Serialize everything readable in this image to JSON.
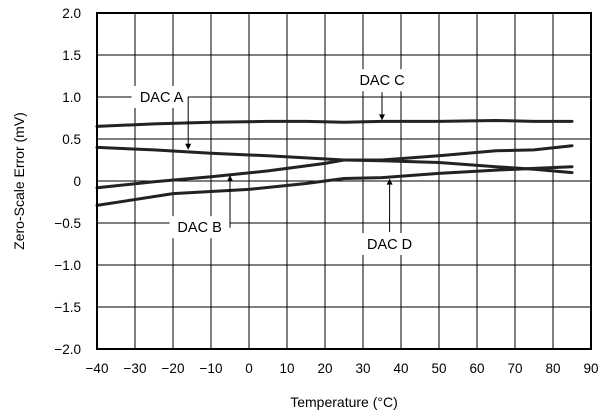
{
  "chart_data": {
    "type": "line",
    "title": "",
    "xlabel": "Temperature (°C)",
    "ylabel": "Zero-Scale Error (mV)",
    "xlim": [
      -40,
      90
    ],
    "ylim": [
      -2.0,
      2.0
    ],
    "xticks": [
      -40,
      -30,
      -20,
      -10,
      0,
      10,
      20,
      30,
      40,
      50,
      60,
      70,
      80,
      90
    ],
    "xtick_labels": [
      "−40",
      "−30",
      "−20",
      "−10",
      "0",
      "10",
      "20",
      "30",
      "40",
      "50",
      "60",
      "70",
      "80",
      "90"
    ],
    "yticks": [
      2.0,
      1.5,
      1.0,
      0.5,
      0,
      -0.5,
      -1.0,
      -1.5,
      -2.0
    ],
    "ytick_labels": [
      "2.0",
      "1.5",
      "1.0",
      "0.5",
      "0",
      "−0.5",
      "−1.0",
      "−1.5",
      "−2.0"
    ],
    "grid": true,
    "legend": "none",
    "series": [
      {
        "name": "DAC A",
        "x": [
          -40,
          -25,
          -10,
          5,
          25,
          35,
          50,
          65,
          75,
          85
        ],
        "y": [
          0.4,
          0.37,
          0.33,
          0.3,
          0.25,
          0.24,
          0.22,
          0.17,
          0.14,
          0.1
        ]
      },
      {
        "name": "DAC B",
        "x": [
          -40,
          -25,
          -10,
          5,
          20,
          25,
          35,
          50,
          65,
          75,
          85
        ],
        "y": [
          -0.08,
          -0.01,
          0.05,
          0.12,
          0.21,
          0.25,
          0.25,
          0.3,
          0.36,
          0.37,
          0.42
        ]
      },
      {
        "name": "DAC C",
        "x": [
          -40,
          -25,
          -10,
          5,
          15,
          25,
          35,
          50,
          65,
          75,
          85
        ],
        "y": [
          0.65,
          0.68,
          0.7,
          0.71,
          0.71,
          0.7,
          0.71,
          0.71,
          0.72,
          0.71,
          0.71
        ]
      },
      {
        "name": "DAC D",
        "x": [
          -40,
          -20,
          0,
          15,
          25,
          35,
          50,
          65,
          75,
          85
        ],
        "y": [
          -0.29,
          -0.15,
          -0.1,
          -0.03,
          0.03,
          0.04,
          0.09,
          0.13,
          0.15,
          0.17
        ]
      }
    ],
    "annotations": [
      {
        "text": "DAC A",
        "series": "DAC A",
        "target_x": -16,
        "target_y": 0.36,
        "label_x": -23,
        "label_y": 1.0
      },
      {
        "text": "DAC B",
        "series": "DAC B",
        "target_x": -5,
        "target_y": 0.08,
        "label_x": -13,
        "label_y": -0.55
      },
      {
        "text": "DAC C",
        "series": "DAC C",
        "target_x": 35,
        "target_y": 0.71,
        "label_x": 35,
        "label_y": 1.2
      },
      {
        "text": "DAC D",
        "series": "DAC D",
        "target_x": 37,
        "target_y": 0.04,
        "label_x": 37,
        "label_y": -0.75
      }
    ]
  }
}
